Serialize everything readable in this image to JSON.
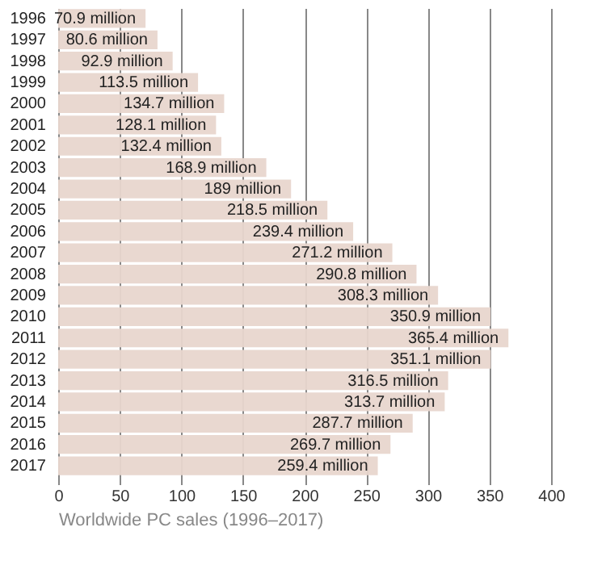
{
  "chart_data": {
    "type": "bar",
    "orientation": "horizontal",
    "xlabel": "Worldwide PC sales (1996–2017)",
    "categories": [
      "1996",
      "1997",
      "1998",
      "1999",
      "2000",
      "2001",
      "2002",
      "2003",
      "2004",
      "2005",
      "2006",
      "2007",
      "2008",
      "2009",
      "2010",
      "2011",
      "2012",
      "2013",
      "2014",
      "2015",
      "2016",
      "2017"
    ],
    "values": [
      70.9,
      80.6,
      92.9,
      113.5,
      134.7,
      128.1,
      132.4,
      168.9,
      189,
      218.5,
      239.4,
      271.2,
      290.8,
      308.3,
      350.9,
      365.4,
      351.1,
      316.5,
      313.7,
      287.7,
      269.7,
      259.4
    ],
    "value_labels": [
      "70.9 million",
      "80.6 million",
      "92.9 million",
      "113.5 million",
      "134.7 million",
      "128.1 million",
      "132.4 million",
      "168.9 million",
      "189 million",
      "218.5 million",
      "239.4 million",
      "271.2 million",
      "290.8 million",
      "308.3 million",
      "350.9 million",
      "365.4 million",
      "351.1 million",
      "316.5 million",
      "313.7 million",
      "287.7 million",
      "269.7 million",
      "259.4 million"
    ],
    "color": "#e8d6cd",
    "xlim": [
      0,
      400
    ],
    "xticks": [
      0,
      50,
      100,
      150,
      200,
      250,
      300,
      350,
      400
    ],
    "grid": "x"
  }
}
